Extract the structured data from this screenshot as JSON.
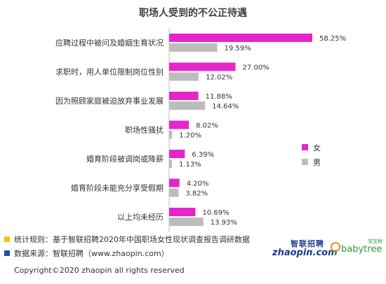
{
  "title": "职场人受到的不公正待遇",
  "colors": {
    "female": "#e526c9",
    "male": "#bdbdbd",
    "note_yellow": "#f5c400",
    "note_blue": "#1f4e9c"
  },
  "chart_data": {
    "type": "bar",
    "orientation": "horizontal",
    "categories": [
      "应聘过程中被问及婚姻生育状况",
      "求职时，用人单位限制岗位性别",
      "因为照顾家庭被迫放弃事业发展",
      "职场性骚扰",
      "婚育阶段被调岗或降薪",
      "婚育阶段未能充分享受假期",
      "以上均未经历"
    ],
    "series": [
      {
        "name": "女",
        "values": [
          58.25,
          27.0,
          11.88,
          8.02,
          6.39,
          4.2,
          10.69
        ],
        "labels": [
          "58.25%",
          "27.00%",
          "11.88%",
          "8.02%",
          "6.39%",
          "4.20%",
          "10.69%"
        ]
      },
      {
        "name": "男",
        "values": [
          19.59,
          12.02,
          14.64,
          1.2,
          1.13,
          3.82,
          13.93
        ],
        "labels": [
          "19.59%",
          "12.02%",
          "14.64%",
          "1.20%",
          "1.13%",
          "3.82%",
          "13.93%"
        ]
      }
    ],
    "value_unit": "%",
    "legend_position": "right",
    "grid": false
  },
  "notes": {
    "rule": "统计规则：基于智联招聘2020年中国职场女性现状调查报告调研数据",
    "source": "数据来源：智联招聘（www.zhaopin.com）"
  },
  "logos": {
    "zhaopin_cn": "智联招聘",
    "zhaopin_en": "zhaopin.com",
    "babytree_cn": "宝宝树",
    "babytree_en": "babytree"
  },
  "copyright": "Copyright©2020 zhaopin all rights reserved"
}
